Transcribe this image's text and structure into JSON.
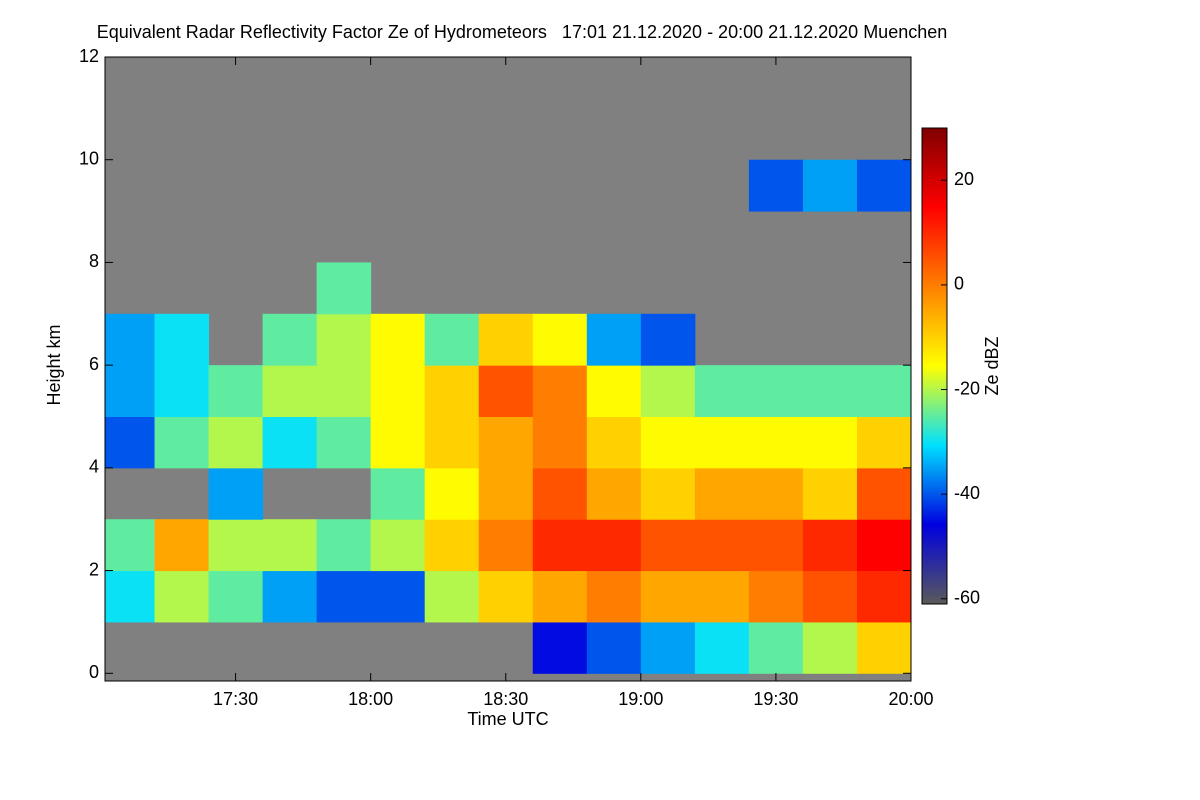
{
  "chart_data": {
    "type": "heatmap",
    "title": "Equivalent Radar Reflectivity Factor Ze of Hydrometeors   17:01 21.12.2020 - 20:00 21.12.2020 Muenchen",
    "x_label": "Time UTC",
    "y_label": "Height km",
    "colorbar_label": "Ze dBZ",
    "background": "#808080",
    "xlim": [
      1021,
      1200
    ],
    "xticks": [
      {
        "value": 1050,
        "label": "17:30"
      },
      {
        "value": 1080,
        "label": "18:00"
      },
      {
        "value": 1110,
        "label": "18:30"
      },
      {
        "value": 1140,
        "label": "19:00"
      },
      {
        "value": 1170,
        "label": "19:30"
      },
      {
        "value": 1200,
        "label": "20:00"
      }
    ],
    "ylim": [
      -0.15,
      12
    ],
    "yticks": [
      0,
      2,
      4,
      6,
      8,
      10,
      12
    ],
    "clim": [
      -61,
      30
    ],
    "cticks": [
      -60,
      -40,
      -20,
      0,
      20
    ],
    "colormap": [
      "#5a5a5a",
      "#0000e0",
      "#00e0ff",
      "#ffff00",
      "#ff8000",
      "#ff0000",
      "#800000"
    ],
    "x_bins": [
      1020,
      1032,
      1044,
      1056,
      1068,
      1080,
      1092,
      1104,
      1116,
      1128,
      1140,
      1152,
      1164,
      1176,
      1188,
      1200
    ],
    "y_bins": [
      0,
      1,
      2,
      3,
      4,
      5,
      6,
      7,
      8,
      9,
      10,
      11,
      12
    ],
    "z": [
      [
        null,
        null,
        null,
        null,
        null,
        null,
        null,
        null,
        -45,
        -40,
        -35,
        -30,
        -25,
        -20,
        -10
      ],
      [
        -30,
        -20,
        -25,
        -35,
        -40,
        -40,
        -20,
        -10,
        -5,
        0,
        -5,
        -5,
        0,
        5,
        10
      ],
      [
        -25,
        -5,
        -20,
        -20,
        -25,
        -20,
        -10,
        0,
        10,
        10,
        5,
        5,
        5,
        10,
        15
      ],
      [
        null,
        null,
        -35,
        null,
        null,
        -25,
        -15,
        -5,
        5,
        -5,
        -10,
        -5,
        -5,
        -10,
        5
      ],
      [
        -40,
        -25,
        -20,
        -30,
        -25,
        -15,
        -10,
        -5,
        0,
        -10,
        -15,
        -15,
        -15,
        -15,
        -10
      ],
      [
        -35,
        -30,
        -25,
        -20,
        -20,
        -15,
        -10,
        5,
        0,
        -15,
        -20,
        -25,
        -25,
        -25,
        -25
      ],
      [
        -35,
        -30,
        null,
        -25,
        -20,
        -15,
        -25,
        -10,
        -15,
        -35,
        -40,
        null,
        null,
        null,
        null
      ],
      [
        null,
        null,
        null,
        null,
        -25,
        null,
        null,
        null,
        null,
        null,
        null,
        null,
        null,
        null,
        null
      ],
      [
        null,
        null,
        null,
        null,
        null,
        null,
        null,
        null,
        null,
        null,
        null,
        null,
        null,
        null,
        null
      ],
      [
        null,
        null,
        null,
        null,
        null,
        null,
        null,
        null,
        null,
        null,
        null,
        null,
        -40,
        -35,
        -40
      ],
      [
        null,
        null,
        null,
        null,
        null,
        null,
        null,
        null,
        null,
        null,
        null,
        null,
        null,
        null,
        null
      ],
      [
        null,
        null,
        null,
        null,
        null,
        null,
        null,
        null,
        null,
        null,
        null,
        null,
        null,
        null,
        null
      ]
    ]
  }
}
